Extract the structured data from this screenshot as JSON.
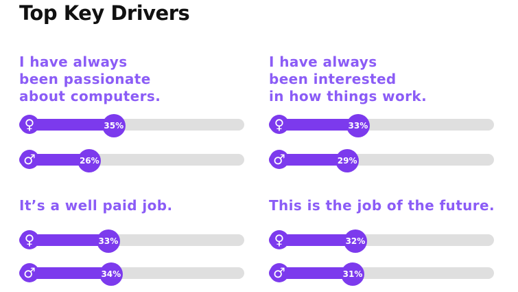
{
  "title": "Top Key Drivers",
  "colors": {
    "accent": "#7c3aed",
    "statement": "#8b5cf6",
    "track": "#dfdfdf"
  },
  "chart_data": {
    "type": "bar",
    "title": "Top Key Drivers",
    "xlim": [
      0,
      100
    ],
    "series_symbols": {
      "female": "♀",
      "male": "♂"
    },
    "panels": [
      {
        "statement_lines": [
          "I have always",
          "been passionate",
          "about computers."
        ],
        "female": {
          "value": 35,
          "label": "35%"
        },
        "male": {
          "value": 26,
          "label": "26%"
        }
      },
      {
        "statement_lines": [
          "I have always",
          "been interested",
          "in how things work."
        ],
        "female": {
          "value": 33,
          "label": "33%"
        },
        "male": {
          "value": 29,
          "label": "29%"
        }
      },
      {
        "statement_lines": [
          "It’s a well paid job."
        ],
        "female": {
          "value": 33,
          "label": "33%"
        },
        "male": {
          "value": 34,
          "label": "34%"
        }
      },
      {
        "statement_lines": [
          "This is the job of the future."
        ],
        "female": {
          "value": 32,
          "label": "32%"
        },
        "male": {
          "value": 31,
          "label": "31%"
        }
      }
    ]
  }
}
